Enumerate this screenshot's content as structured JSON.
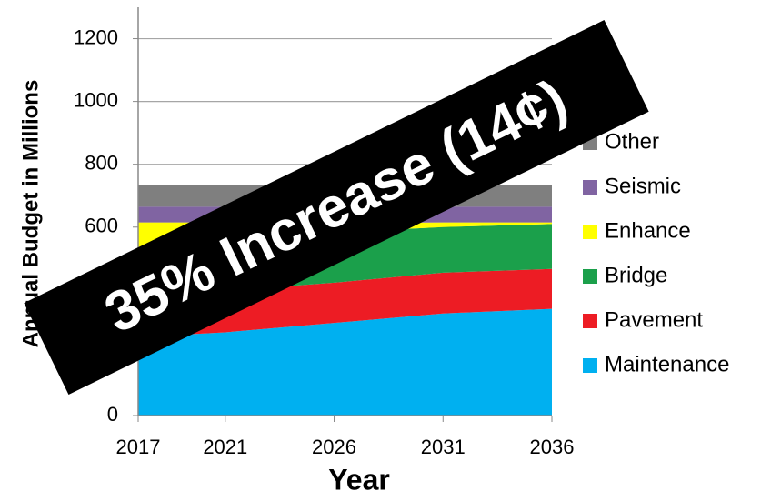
{
  "chart_data": {
    "type": "area",
    "stacked": true,
    "x_label": "Year",
    "y_label": "Annual Budget in Millions",
    "annotation": "35% Increase (14¢)",
    "x": [
      2017,
      2021,
      2026,
      2031,
      2036
    ],
    "xlim": [
      2017,
      2036
    ],
    "xticks": [
      2017,
      2021,
      2026,
      2031,
      2036
    ],
    "ylim": [
      0,
      1300
    ],
    "yticks": [
      0,
      200,
      400,
      600,
      800,
      1000,
      1200
    ],
    "grid": true,
    "legend": "right",
    "series": [
      {
        "name": "Maintenance",
        "color": "#00b0f0",
        "values": [
          250,
          265,
          295,
          325,
          340
        ]
      },
      {
        "name": "Pavement",
        "color": "#ed1c24",
        "values": [
          130,
          132,
          128,
          130,
          127
        ]
      },
      {
        "name": "Bridge",
        "color": "#1ba04b",
        "values": [
          135,
          170,
          160,
          145,
          143
        ]
      },
      {
        "name": "Enhance",
        "color": "#ffff00",
        "values": [
          100,
          48,
          30,
          15,
          5
        ]
      },
      {
        "name": "Seismic",
        "color": "#8064a2",
        "values": [
          50,
          50,
          50,
          50,
          50
        ]
      },
      {
        "name": "Other",
        "color": "#7f7f7f",
        "values": [
          70,
          70,
          70,
          70,
          70
        ]
      }
    ]
  }
}
